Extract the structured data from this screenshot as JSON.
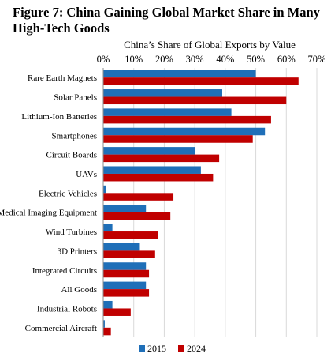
{
  "figure": {
    "title": "Figure 7: China Gaining Global Market Share in Many High-Tech Goods"
  },
  "chart_data": {
    "type": "bar",
    "orientation": "horizontal",
    "title": "",
    "xlabel": "China’s Share of Global Exports by Value",
    "ylabel": "",
    "xlim": [
      0,
      70
    ],
    "xticks": [
      "0%",
      "10%",
      "20%",
      "30%",
      "40%",
      "50%",
      "60%",
      "70%"
    ],
    "grid": true,
    "legend_position": "bottom",
    "categories": [
      "Rare Earth Magnets",
      "Solar Panels",
      "Lithium-Ion Batteries",
      "Smartphones",
      "Circuit Boards",
      "UAVs",
      "Electric Vehicles",
      "Medical Imaging Equipment",
      "Wind Turbines",
      "3D Printers",
      "Integrated Circuits",
      "All Goods",
      "Industrial Robots",
      "Commercial Aircraft"
    ],
    "series": [
      {
        "name": "2015",
        "color": "#1f6fb8",
        "values": [
          50,
          39,
          42,
          53,
          30,
          32,
          1,
          14,
          3,
          12,
          14,
          14,
          3,
          0.5
        ]
      },
      {
        "name": "2024",
        "color": "#c00000",
        "values": [
          64,
          60,
          55,
          49,
          38,
          36,
          23,
          22,
          18,
          17,
          15,
          15,
          9,
          2.5
        ]
      }
    ]
  }
}
